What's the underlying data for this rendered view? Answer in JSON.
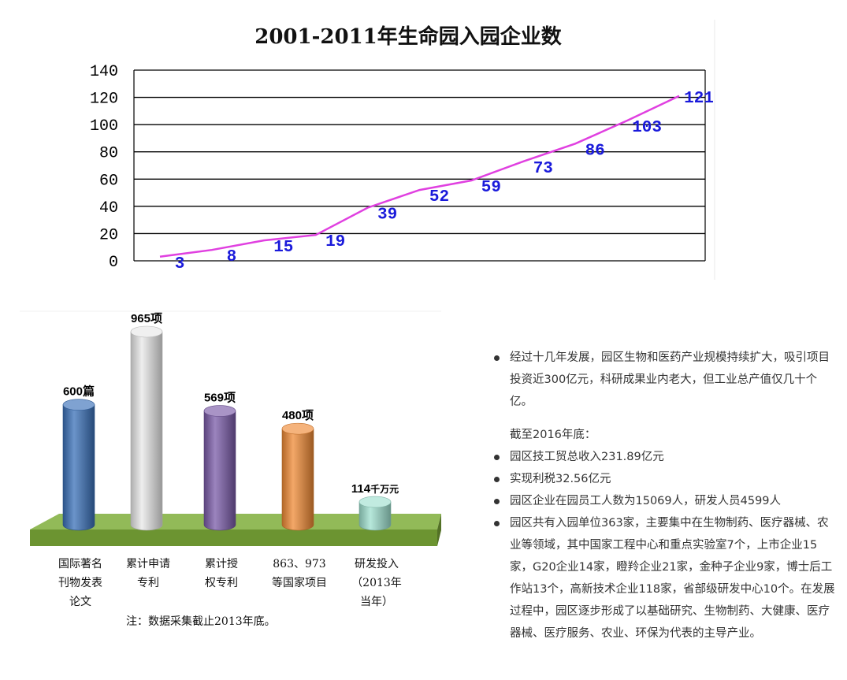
{
  "chart_data": [
    {
      "type": "line",
      "title": "2001-2011年生命园入园企业数",
      "x": [
        1,
        2,
        3,
        4,
        5,
        6,
        7,
        8,
        9,
        10,
        11
      ],
      "series": [
        {
          "values": [
            3,
            8,
            15,
            19,
            39,
            52,
            59,
            73,
            86,
            103,
            121
          ],
          "color": "#e040e0"
        }
      ],
      "data_labels": [
        "3",
        "8",
        "15",
        "19",
        "39",
        "52",
        "59",
        "73",
        "86",
        "103",
        "121"
      ],
      "yticks": [
        "0",
        "20",
        "40",
        "60",
        "80",
        "100",
        "120",
        "140"
      ],
      "ylim": [
        0,
        140
      ],
      "grid": true,
      "label_color": "#1a1adb"
    },
    {
      "type": "bar",
      "style": "3d-cylinder",
      "categories": [
        [
          "国际著名",
          "刊物发表",
          "论文"
        ],
        [
          "累计申请",
          "专利"
        ],
        [
          "累计授",
          "权专利"
        ],
        [
          "863、973",
          "等国家项目"
        ],
        [
          "研发投入",
          "（2013年",
          "当年）"
        ]
      ],
      "value_labels": [
        {
          "number": "600",
          "unit": "篇"
        },
        {
          "number": "965",
          "unit": "项"
        },
        {
          "number": "569",
          "unit": "项"
        },
        {
          "number": "480",
          "unit": "项"
        },
        {
          "number": "114",
          "unit": "千万元"
        }
      ],
      "values": [
        600,
        965,
        569,
        480,
        114
      ],
      "colors": [
        "#3a70b8",
        "#e8e8e8",
        "#7a5ba8",
        "#ef8a35",
        "#9fe0cf"
      ],
      "platform_color": "#7fae3a",
      "note": "注：数据采集截止2013年底。"
    }
  ],
  "info": {
    "paragraph1": "经过十几年发展，园区生物和医药产业规模持续扩大，吸引项目投资近300亿元，科研成果业内老大，但工业总产值仅几十个亿。",
    "subheading": "截至2016年底：",
    "items": [
      "园区技工贸总收入231.89亿元",
      "实现利税32.56亿元",
      "园区企业在园员工人数为15069人，研发人员4599人",
      "园区共有入园单位363家，主要集中在生物制药、医疗器械、农业等领域，其中国家工程中心和重点实验室7个，上市企业15家，G20企业14家，瞪羚企业21家，金种子企业9家，博士后工作站13个，高新技术企业118家，省部级研发中心10个。在发展过程中，园区逐步形成了以基础研究、生物制药、大健康、医疗器械、医疗服务、农业、环保为代表的主导产业。"
    ]
  }
}
